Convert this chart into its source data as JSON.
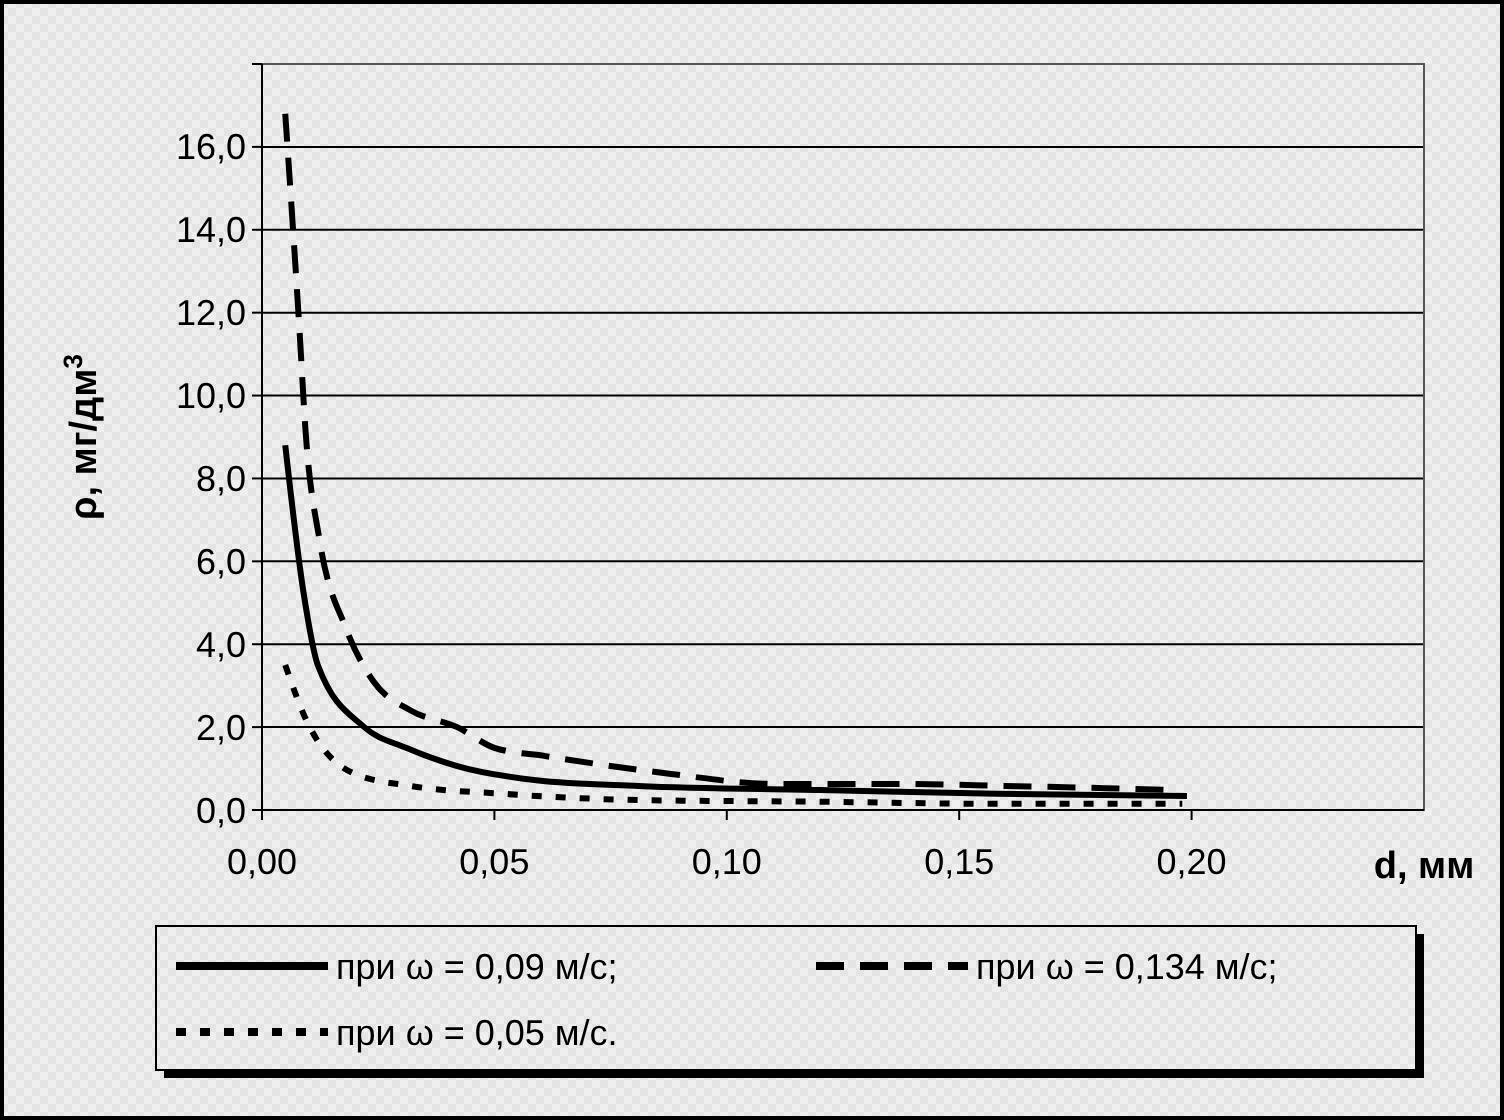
{
  "chart_data": {
    "type": "line",
    "xlabel": "d, мм",
    "ylabel": "ρ, мг/дм$^{3}$",
    "xlim": [
      0,
      0.25
    ],
    "xticks": [
      {
        "value": 0,
        "label": "0,00"
      },
      {
        "value": 0.05,
        "label": "0,05"
      },
      {
        "value": 0.1,
        "label": "0,10"
      },
      {
        "value": 0.15,
        "label": "0,15"
      },
      {
        "value": 0.2,
        "label": "0,20"
      }
    ],
    "ylim": [
      0,
      18
    ],
    "yticks": [
      {
        "value": 0,
        "label": "0,0"
      },
      {
        "value": 2,
        "label": "2,0"
      },
      {
        "value": 4,
        "label": "4,0"
      },
      {
        "value": 6,
        "label": "6,0"
      },
      {
        "value": 8,
        "label": "8,0"
      },
      {
        "value": 10,
        "label": "10,0"
      },
      {
        "value": 12,
        "label": "12,0"
      },
      {
        "value": 14,
        "label": "14,0"
      },
      {
        "value": 16,
        "label": "16,0"
      },
      {
        "value": 18,
        "label": null
      }
    ],
    "grid": "y",
    "legend": "bottom",
    "marker": "none",
    "series": [
      {
        "name": "при ω = 0,09 м/с;",
        "color": "#000000",
        "line_style": "solid",
        "x": [
          0.005,
          0.009,
          0.012,
          0.022,
          0.031,
          0.042,
          0.059,
          0.081,
          0.12,
          0.158,
          0.199
        ],
        "values": [
          8.8,
          5.2,
          3.5,
          2.0,
          1.5,
          1.06,
          0.72,
          0.58,
          0.48,
          0.39,
          0.34
        ]
      },
      {
        "name": "при ω = 0,134 м/с;",
        "color": "#000000",
        "line_style": "dashed",
        "x": [
          0.005,
          0.008,
          0.0094,
          0.0124,
          0.018,
          0.024,
          0.032,
          0.042,
          0.05,
          0.061,
          0.081,
          0.088,
          0.11,
          0.138,
          0.16,
          0.18,
          0.196
        ],
        "values": [
          16.8,
          11.7,
          9.1,
          6.5,
          4.4,
          3.1,
          2.4,
          2.0,
          1.5,
          1.3,
          0.97,
          0.87,
          0.63,
          0.63,
          0.58,
          0.53,
          0.48
        ]
      },
      {
        "name": "при ω = 0,05 м/с.",
        "color": "#000000",
        "line_style": "dotted",
        "x": [
          0.005,
          0.009,
          0.02,
          0.032,
          0.052,
          0.081,
          0.12,
          0.158,
          0.198
        ],
        "values": [
          3.5,
          2.3,
          0.87,
          0.58,
          0.39,
          0.24,
          0.2,
          0.15,
          0.15
        ]
      }
    ]
  }
}
